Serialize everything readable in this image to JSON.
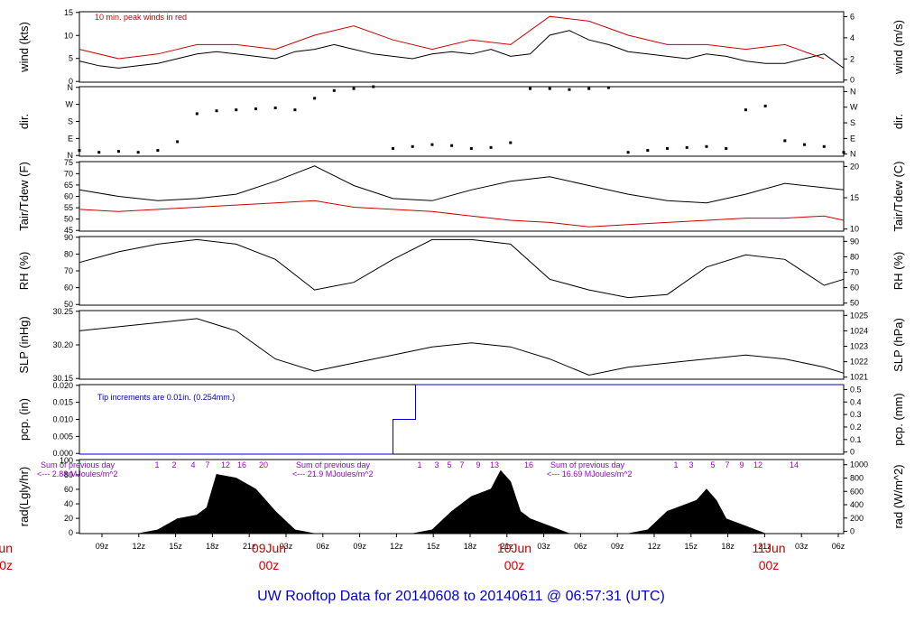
{
  "chart_data": {
    "type": "line",
    "title": "UW Rooftop Data for 20140608  to  20140611 @ 06:57:31  (UTC)",
    "x_ticks": [
      "09z",
      "12z",
      "15z",
      "18z",
      "21z",
      "03z",
      "06z",
      "09z",
      "12z",
      "15z",
      "18z",
      "21z",
      "03z",
      "06z",
      "09z",
      "12z",
      "15z",
      "18z",
      "21z",
      "03z",
      "06z"
    ],
    "date_labels": [
      {
        "day": "8Jun",
        "hour": "00z"
      },
      {
        "day": "09Jun",
        "hour": "00z"
      },
      {
        "day": "10Jun",
        "hour": "00z"
      },
      {
        "day": "11Jun",
        "hour": "00z"
      }
    ],
    "panels": {
      "wind": {
        "ylabel_left": "wind (kts)",
        "ylabel_right": "wind (m/s)",
        "left_ticks": [
          "0",
          "5",
          "10",
          "15"
        ],
        "right_ticks": [
          "0",
          "2",
          "4",
          "6"
        ],
        "ylim": [
          0,
          15
        ],
        "note": "10 min. peak winds in red",
        "series": [
          {
            "name": "wind",
            "color": "#000000",
            "x": [
              0,
              2,
              4,
              6,
              8,
              10,
              12,
              14,
              16,
              18,
              20,
              22,
              24,
              26,
              28,
              30,
              32,
              34,
              36,
              38,
              40,
              42,
              44,
              46,
              48,
              50,
              52,
              54,
              56,
              58,
              60,
              62,
              64,
              66,
              68,
              70,
              72,
              74,
              76,
              78
            ],
            "y": [
              4.5,
              3.5,
              3,
              3.5,
              4,
              5,
              6,
              6.5,
              6,
              5.5,
              5,
              6.5,
              7,
              8,
              7,
              6,
              5.5,
              5,
              6,
              6.5,
              6,
              7,
              5.5,
              6,
              10,
              11,
              9,
              8,
              6.5,
              6,
              5.5,
              5,
              6,
              5.5,
              4.5,
              4,
              4,
              5,
              6,
              3
            ]
          },
          {
            "name": "peak",
            "color": "#cc0000",
            "x": [
              0,
              4,
              8,
              12,
              16,
              20,
              24,
              28,
              32,
              36,
              40,
              44,
              48,
              52,
              56,
              60,
              64,
              68,
              72,
              76
            ],
            "y": [
              7,
              5,
              6,
              8,
              8,
              7,
              10,
              12,
              9,
              7,
              9,
              8,
              14,
              13,
              10,
              8,
              8,
              7,
              8,
              5
            ]
          }
        ]
      },
      "direction": {
        "ylabel_left": "dir.",
        "ylabel_right": "dir.",
        "left_ticks": [
          "N",
          "E",
          "S",
          "W",
          "N"
        ],
        "right_ticks": [
          "N",
          "E",
          "S",
          "W",
          "N"
        ],
        "ylim": [
          0,
          360
        ],
        "series": [
          {
            "name": "dir",
            "color": "#000000",
            "x": [
              0,
              2,
              4,
              6,
              8,
              10,
              12,
              14,
              16,
              18,
              20,
              22,
              24,
              26,
              28,
              30,
              32,
              34,
              36,
              38,
              40,
              42,
              44,
              46,
              48,
              50,
              52,
              54,
              56,
              58,
              60,
              62,
              64,
              66,
              68,
              70,
              72,
              74,
              76,
              78
            ],
            "y": [
              30,
              20,
              25,
              20,
              30,
              75,
              220,
              235,
              240,
              245,
              250,
              240,
              300,
              340,
              350,
              360,
              40,
              50,
              60,
              55,
              40,
              45,
              70,
              350,
              350,
              345,
              350,
              355,
              20,
              30,
              40,
              45,
              50,
              40,
              240,
              260,
              80,
              60,
              50,
              20
            ]
          }
        ]
      },
      "temperature": {
        "ylabel_left": "Tair/Tdew (F)",
        "ylabel_right": "Tair/Tdew (C)",
        "left_ticks": [
          "45",
          "50",
          "55",
          "60",
          "65",
          "70",
          "75"
        ],
        "right_ticks": [
          "10",
          "15",
          "20"
        ],
        "ylim": [
          43,
          75
        ],
        "series": [
          {
            "name": "Tair",
            "color": "#000000",
            "x": [
              0,
              4,
              8,
              12,
              16,
              20,
              24,
              28,
              32,
              36,
              40,
              44,
              48,
              52,
              56,
              60,
              64,
              68,
              72,
              76,
              78
            ],
            "y": [
              62,
              59,
              57,
              58,
              60,
              66,
              73,
              64,
              58,
              57,
              62,
              66,
              68,
              64,
              60,
              57,
              56,
              60,
              65,
              63,
              62
            ]
          },
          {
            "name": "Tdew",
            "color": "#cc0000",
            "x": [
              0,
              4,
              8,
              12,
              16,
              20,
              24,
              28,
              32,
              36,
              40,
              44,
              48,
              52,
              56,
              60,
              64,
              68,
              72,
              76,
              78
            ],
            "y": [
              53,
              52,
              53,
              54,
              55,
              56,
              57,
              54,
              53,
              52,
              50,
              48,
              47,
              45,
              46,
              47,
              48,
              49,
              49,
              50,
              48
            ]
          }
        ]
      },
      "rh": {
        "ylabel_left": "RH (%)",
        "ylabel_right": "RH (%)",
        "left_ticks": [
          "50",
          "60",
          "70",
          "80",
          "90"
        ],
        "right_ticks": [
          "50",
          "60",
          "70",
          "80",
          "90"
        ],
        "ylim": [
          45,
          90
        ],
        "series": [
          {
            "name": "RH",
            "color": "#000000",
            "x": [
              0,
              4,
              8,
              12,
              16,
              20,
              24,
              28,
              32,
              36,
              40,
              44,
              48,
              52,
              56,
              60,
              64,
              68,
              72,
              76,
              78
            ],
            "y": [
              73,
              80,
              85,
              88,
              85,
              75,
              55,
              60,
              75,
              88,
              88,
              85,
              62,
              55,
              50,
              52,
              70,
              78,
              75,
              58,
              62
            ]
          }
        ]
      },
      "pressure": {
        "ylabel_left": "SLP (inHg)",
        "ylabel_right": "SLP (hPa)",
        "left_ticks": [
          "30.15",
          "30.20",
          "30.25"
        ],
        "right_ticks": [
          "1021",
          "1022",
          "1023",
          "1024",
          "1025"
        ],
        "ylim": [
          30.13,
          30.3
        ],
        "series": [
          {
            "name": "SLP",
            "color": "#000000",
            "x": [
              0,
              4,
              8,
              12,
              16,
              20,
              24,
              28,
              32,
              36,
              40,
              44,
              48,
              52,
              56,
              60,
              64,
              68,
              72,
              76,
              78
            ],
            "y": [
              30.25,
              30.26,
              30.27,
              30.28,
              30.25,
              30.18,
              30.15,
              30.17,
              30.19,
              30.21,
              30.22,
              30.21,
              30.18,
              30.14,
              30.16,
              30.17,
              30.18,
              30.19,
              30.18,
              30.16,
              30.145
            ]
          }
        ]
      },
      "precip": {
        "ylabel_left": "pcp. (in)",
        "ylabel_right": "pcp. (mm)",
        "left_ticks": [
          "0.000",
          "0.005",
          "0.010",
          "0.015",
          "0.020"
        ],
        "right_ticks": [
          "0",
          "0.1",
          "0.2",
          "0.3",
          "0.4",
          "0.5"
        ],
        "ylim": [
          0,
          0.02
        ],
        "note": "Tip increments are 0.01in. (0.254mm.)",
        "series": [
          {
            "name": "pcp",
            "color": "#0000cc",
            "step": true,
            "x": [
              0,
              32,
              32,
              34.3,
              34.3,
              78
            ],
            "y": [
              0,
              0,
              0.01,
              0.01,
              0.02,
              0.02
            ]
          }
        ]
      },
      "radiation": {
        "ylabel_left": "rad(Lgly/hr)",
        "ylabel_right": "rad (W/m^2)",
        "left_ticks": [
          "0",
          "20",
          "40",
          "60",
          "80",
          "100"
        ],
        "right_ticks": [
          "0",
          "200",
          "400",
          "600",
          "800",
          "1000"
        ],
        "ylim": [
          0,
          100
        ],
        "series": [
          {
            "name": "rad",
            "color": "#000000",
            "fill": true,
            "x": [
              0,
              6,
              8,
              10,
              12,
              13,
              14,
              16,
              18,
              20,
              22,
              24,
              26,
              30,
              34,
              36,
              38,
              40,
              42,
              43,
              44,
              45,
              46,
              48,
              50,
              52,
              56,
              58,
              60,
              62,
              63,
              64,
              65,
              66,
              68,
              70,
              72,
              74,
              78
            ],
            "y": [
              0,
              0,
              5,
              20,
              25,
              35,
              80,
              75,
              60,
              30,
              5,
              0,
              0,
              0,
              0,
              5,
              30,
              50,
              60,
              85,
              70,
              30,
              20,
              10,
              0,
              0,
              0,
              5,
              30,
              40,
              45,
              60,
              45,
              20,
              10,
              0,
              0,
              0,
              0
            ]
          }
        ],
        "daily_notes": [
          {
            "heading": "Sum of previous day",
            "total": "<--- 2.88 MJoules/m^2",
            "hours": [
              "1",
              "2",
              "4",
              "7",
              "12",
              "16",
              "20"
            ]
          },
          {
            "heading": "Sum of previous day",
            "total": "<--- 21.9 MJoules/m^2",
            "hours": [
              "1",
              "3",
              "5",
              "7",
              "9",
              "13",
              "16"
            ]
          },
          {
            "heading": "Sum of previous day",
            "total": "<--- 16.69 MJoules/m^2",
            "hours": [
              "1",
              "3",
              "5",
              "7",
              "9",
              "12",
              "14"
            ]
          }
        ]
      }
    }
  }
}
